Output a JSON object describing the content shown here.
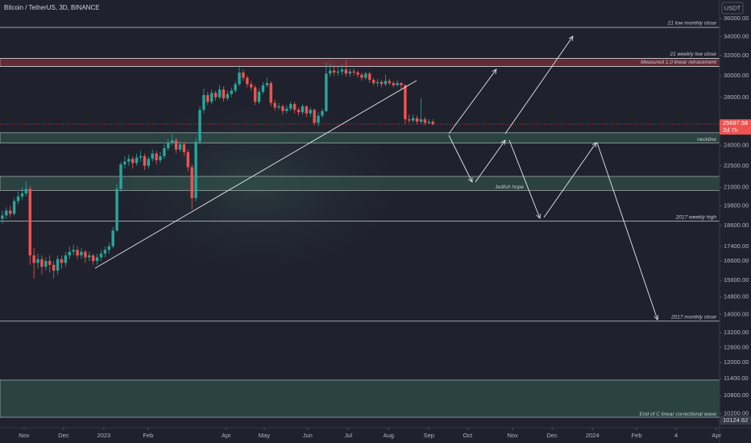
{
  "chart_data": {
    "type": "candlestick",
    "title": "Bitcoin / TetherUS, 3D, BINANCE",
    "currency": "USDT",
    "log_y": true,
    "up_color": "#26a69a",
    "down_color": "#ef5350",
    "open": [
      19000,
      19200,
      19500,
      19300,
      20100,
      20400,
      20600,
      20900,
      16900,
      16500,
      16700,
      16300,
      16600,
      16400,
      16100,
      16700,
      16500,
      16900,
      17100,
      17200,
      16900,
      17100,
      16800,
      16900,
      16600,
      16800,
      17000,
      17200,
      17400,
      18300,
      20900,
      22600,
      22800,
      23000,
      22700,
      23100,
      23200,
      22500,
      23000,
      23400,
      22900,
      23200,
      23800,
      24200,
      24400,
      23700,
      24100,
      23500,
      22400,
      20300,
      24300,
      26900,
      28200,
      27600,
      28400,
      28000,
      28700,
      27900,
      28300,
      28600,
      29200,
      30300,
      29800,
      29200,
      28900,
      27600,
      28500,
      29100,
      29300,
      27500,
      27100,
      27200,
      26800,
      27000,
      27400,
      26900,
      26700,
      27200,
      26600,
      26900,
      25800,
      26400,
      26800,
      30200,
      30500,
      30300,
      30400,
      30600,
      30200,
      30400,
      30300,
      30100,
      29800,
      30200,
      29600,
      29300,
      29400,
      29200,
      29500,
      29300,
      29100,
      29300,
      29100,
      26100,
      26000,
      26200,
      25900,
      26100,
      25800,
      25900
    ],
    "high": [
      19500,
      19700,
      19800,
      20300,
      20700,
      21000,
      21400,
      21100,
      17300,
      17000,
      16900,
      16800,
      16900,
      16600,
      16900,
      16900,
      17100,
      17400,
      17500,
      17400,
      17300,
      17200,
      17100,
      17000,
      17000,
      17200,
      17400,
      17600,
      18500,
      21200,
      22800,
      23200,
      23300,
      23200,
      23400,
      23600,
      23400,
      23200,
      23700,
      23600,
      23500,
      24100,
      24500,
      24900,
      24600,
      24300,
      24300,
      23700,
      22600,
      24600,
      27200,
      28800,
      28500,
      28700,
      28600,
      29100,
      29000,
      28600,
      28900,
      29500,
      31000,
      30600,
      30000,
      29500,
      29100,
      28800,
      29400,
      29800,
      29500,
      27800,
      27500,
      27400,
      27300,
      27600,
      27600,
      27100,
      27400,
      27300,
      27100,
      27000,
      26700,
      27000,
      31300,
      31200,
      31000,
      31000,
      31100,
      31500,
      30700,
      30700,
      30500,
      30300,
      30400,
      30400,
      29800,
      29700,
      29600,
      30100,
      29700,
      29500,
      29600,
      29400,
      29200,
      26500,
      26500,
      26400,
      27900,
      26300,
      26100,
      26100
    ],
    "low": [
      18700,
      19000,
      19100,
      19200,
      19900,
      20200,
      20400,
      16400,
      15700,
      16200,
      15900,
      16100,
      16000,
      15700,
      15900,
      16200,
      16300,
      16700,
      16900,
      16700,
      16700,
      16500,
      16600,
      16400,
      16400,
      16600,
      16800,
      17000,
      17300,
      18200,
      20700,
      22300,
      22500,
      22300,
      22500,
      22800,
      22200,
      22300,
      22800,
      22600,
      22700,
      23000,
      23600,
      24000,
      23400,
      23500,
      23200,
      22100,
      19600,
      20100,
      24100,
      26600,
      27300,
      27400,
      27700,
      27800,
      27600,
      27700,
      28000,
      28400,
      29000,
      29500,
      28900,
      28600,
      27300,
      27400,
      28300,
      28900,
      27200,
      26800,
      26900,
      26500,
      26600,
      26800,
      26600,
      26400,
      26500,
      26300,
      26300,
      25600,
      25500,
      26200,
      26700,
      29900,
      30000,
      30000,
      30100,
      29900,
      29900,
      30000,
      29800,
      29500,
      29600,
      29300,
      29100,
      29000,
      28900,
      29000,
      29100,
      28900,
      29000,
      28700,
      25700,
      25800,
      25800,
      25700,
      25700,
      25600,
      25700,
      25600
    ],
    "close": [
      19200,
      19500,
      19300,
      20100,
      20400,
      20600,
      20900,
      16900,
      16500,
      16700,
      16300,
      16600,
      16400,
      16100,
      16700,
      16500,
      16900,
      17100,
      17200,
      16900,
      17100,
      16800,
      16900,
      16600,
      16800,
      17000,
      17200,
      17400,
      18300,
      20900,
      22600,
      22800,
      23000,
      22700,
      23100,
      23200,
      22500,
      23000,
      23400,
      22900,
      23200,
      23800,
      24200,
      24400,
      23700,
      24100,
      23500,
      22400,
      20300,
      24300,
      26900,
      28200,
      27600,
      28400,
      28000,
      28700,
      27900,
      28300,
      28600,
      29200,
      30300,
      29800,
      29200,
      28900,
      27600,
      28500,
      29100,
      29300,
      27500,
      27100,
      27200,
      26800,
      27000,
      27400,
      26900,
      26700,
      27200,
      26600,
      26900,
      25800,
      26400,
      26800,
      30200,
      30500,
      30300,
      30400,
      30600,
      30200,
      30400,
      30300,
      30100,
      29800,
      30200,
      29600,
      29300,
      29400,
      29200,
      29500,
      29300,
      29100,
      29300,
      29100,
      26100,
      26000,
      26200,
      25900,
      26100,
      25800,
      25900,
      25697.58
    ],
    "xlim": [
      -0.6,
      181.6
    ],
    "xticks": [
      {
        "value": 5.5,
        "label": "Nov"
      },
      {
        "value": 15.5,
        "label": "Dec"
      },
      {
        "value": 25.7,
        "label": "2023"
      },
      {
        "value": 36.9,
        "label": "Feb"
      },
      {
        "value": 56.7,
        "label": "Apr"
      },
      {
        "value": 66.3,
        "label": "May"
      },
      {
        "value": 77.3,
        "label": "Jun"
      },
      {
        "value": 87.6,
        "label": "Jul"
      },
      {
        "value": 97.8,
        "label": "Aug"
      },
      {
        "value": 108,
        "label": "Sep"
      },
      {
        "value": 117.8,
        "label": "Oct"
      },
      {
        "value": 129.2,
        "label": "Nov"
      },
      {
        "value": 139.2,
        "label": "Dec"
      },
      {
        "value": 149.4,
        "label": "2024"
      },
      {
        "value": 160.6,
        "label": "Feb"
      },
      {
        "value": 170.6,
        "label": "4"
      },
      {
        "value": 180.8,
        "label": "Apr"
      }
    ],
    "ylim": [
      9750,
      38200
    ],
    "yticks": [
      {
        "value": 36000,
        "label": "36000.00"
      },
      {
        "value": 34000,
        "label": "34000.00"
      },
      {
        "value": 32000,
        "label": "32000.00"
      },
      {
        "value": 30000,
        "label": "30000.00"
      },
      {
        "value": 28000,
        "label": "28000.00"
      },
      {
        "value": 24000,
        "label": "24000.00"
      },
      {
        "value": 22500,
        "label": "22500.00"
      },
      {
        "value": 21000,
        "label": "21000.00"
      },
      {
        "value": 19800,
        "label": "19800.00"
      },
      {
        "value": 18600,
        "label": "18600.00"
      },
      {
        "value": 17400,
        "label": "17400.00"
      },
      {
        "value": 16600,
        "label": "16600.00"
      },
      {
        "value": 15600,
        "label": "15600.00"
      },
      {
        "value": 14800,
        "label": "14800.00"
      },
      {
        "value": 14000,
        "label": "14000.00"
      },
      {
        "value": 13200,
        "label": "13200.00"
      },
      {
        "value": 12600,
        "label": "12600.00"
      },
      {
        "value": 12000,
        "label": "12000.00"
      },
      {
        "value": 11400,
        "label": "11400.00"
      },
      {
        "value": 10800,
        "label": "10800.00"
      },
      {
        "value": 10200,
        "label": "10200.00"
      }
    ],
    "levels": [
      {
        "label": "21 low monthly close",
        "value": 35000
      },
      {
        "label": "21 weekly low close",
        "value": 31700
      },
      {
        "label": "Measured 1.0 linear retracement",
        "value": 30900
      },
      {
        "label": "2017 weekly high",
        "value": 18850
      },
      {
        "label": "2017 monthly close",
        "value": 13700
      }
    ],
    "zones": [
      {
        "top": 31700,
        "bottom": 30900,
        "color": "#7a2f3a"
      },
      {
        "top": 25000,
        "bottom": 24200,
        "color": "#2f4f4a",
        "label": "neckline"
      },
      {
        "top": 21750,
        "bottom": 20800,
        "color": "#2f4f4a",
        "label": "bullish hope"
      },
      {
        "top": 11350,
        "bottom": 10080,
        "color": "#2f4f4a",
        "label": "End of C linear correctional wave"
      }
    ],
    "last_price": 25697.58,
    "countdown": "2d 7h",
    "bottom_price": 10124.62
  }
}
